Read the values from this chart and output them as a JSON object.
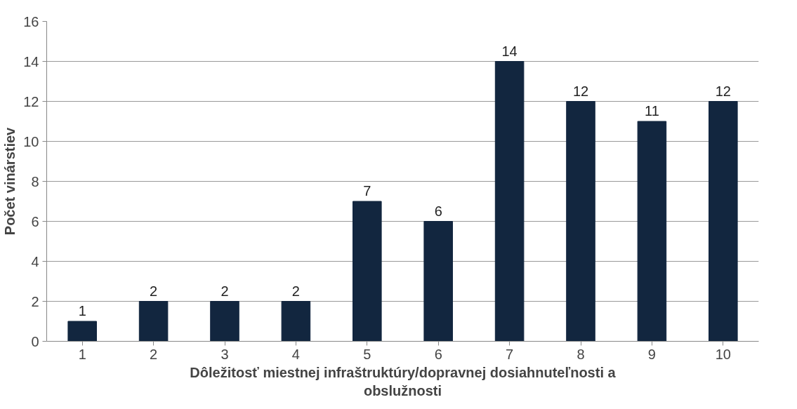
{
  "chart_data": {
    "type": "bar",
    "categories": [
      "1",
      "2",
      "3",
      "4",
      "5",
      "6",
      "7",
      "8",
      "9",
      "10"
    ],
    "values": [
      1,
      2,
      2,
      2,
      7,
      6,
      14,
      12,
      11,
      12
    ],
    "color": "#12263f",
    "xlabel": "Dôležitosť miestnej infraštruktúry/dopravnej dosiahnuteľnosti a obslužnosti",
    "ylabel": "Počet vinárstiev",
    "ylim": [
      0,
      16
    ],
    "yticks": [
      0,
      2,
      4,
      6,
      8,
      10,
      12,
      14,
      16
    ],
    "grid": "y",
    "data_labels": true
  }
}
